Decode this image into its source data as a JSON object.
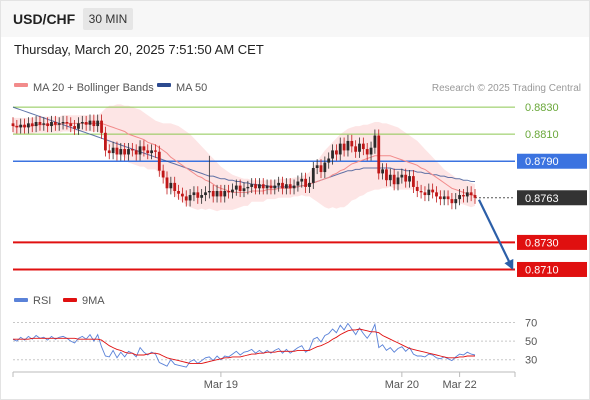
{
  "header": {
    "symbol": "USD/CHF",
    "timeframe": "30 MIN",
    "datetime": "Thursday, March 20, 2025 7:51:50 AM CET"
  },
  "legend": {
    "ma20_label": "MA 20 + Bollinger Bands",
    "ma50_label": "MA 50",
    "credit": "Research © 2025 Trading Central",
    "rsi_label": "RSI",
    "rsi_ma_label": "9MA"
  },
  "colors": {
    "ma20": "#f28b8b",
    "band_fill": "#fde0e0",
    "ma50": "#2c4a8f",
    "resistance": "#8cc850",
    "pivot": "#3b73e0",
    "support": "#e01010",
    "current": "#333333",
    "candle_up": "#2a2a2a",
    "candle_down": "#c01818",
    "forecast_arrow": "#2c5fa8",
    "rsi": "#5a82d8",
    "rsi_ma": "#e01010"
  },
  "chart_data": [
    {
      "type": "candlestick",
      "title": "USD/CHF",
      "yticks_shown": false,
      "ylim": [
        0.87,
        0.8836
      ],
      "xticks": [
        {
          "label": "Mar 19",
          "index": 54
        },
        {
          "label": "Mar 20",
          "index": 101
        },
        {
          "label": "Mar 22",
          "index": 116
        }
      ],
      "levels": [
        {
          "value": 0.883,
          "label": "0.8830",
          "kind": "resistance"
        },
        {
          "value": 0.881,
          "label": "0.8810",
          "kind": "resistance"
        },
        {
          "value": 0.879,
          "label": "0.8790",
          "kind": "pivot"
        },
        {
          "value": 0.8763,
          "label": "0.8763",
          "kind": "current"
        },
        {
          "value": 0.873,
          "label": "0.8730",
          "kind": "support"
        },
        {
          "value": 0.871,
          "label": "0.8710",
          "kind": "support"
        }
      ],
      "series": [
        {
          "name": "USD/CHF",
          "close": [
            0.8816,
            0.8815,
            0.8817,
            0.8815,
            0.8818,
            0.8816,
            0.8819,
            0.8817,
            0.8818,
            0.8816,
            0.8819,
            0.8817,
            0.8818,
            0.8819,
            0.8818,
            0.8816,
            0.8814,
            0.8818,
            0.8819,
            0.8817,
            0.882,
            0.8816,
            0.882,
            0.8811,
            0.8798,
            0.8796,
            0.88,
            0.8795,
            0.8799,
            0.8795,
            0.8799,
            0.8798,
            0.8795,
            0.8801,
            0.8798,
            0.8796,
            0.8798,
            0.8797,
            0.8783,
            0.8778,
            0.877,
            0.8774,
            0.8768,
            0.8766,
            0.8764,
            0.8761,
            0.8765,
            0.8767,
            0.8763,
            0.8765,
            0.8767,
            0.8768,
            0.8764,
            0.8768,
            0.8764,
            0.8768,
            0.8767,
            0.8769,
            0.8772,
            0.8768,
            0.877,
            0.8771,
            0.8773,
            0.877,
            0.8773,
            0.877,
            0.8772,
            0.877,
            0.8772,
            0.8774,
            0.877,
            0.8773,
            0.877,
            0.8772,
            0.8775,
            0.8777,
            0.8771,
            0.8774,
            0.8785,
            0.8787,
            0.8782,
            0.8789,
            0.8792,
            0.8798,
            0.8795,
            0.8803,
            0.8798,
            0.8805,
            0.8801,
            0.8797,
            0.8803,
            0.8799,
            0.8795,
            0.88,
            0.8809,
            0.8781,
            0.8784,
            0.8776,
            0.878,
            0.8773,
            0.8778,
            0.878,
            0.8775,
            0.8779,
            0.8771,
            0.8768,
            0.8767,
            0.8765,
            0.8769,
            0.8767,
            0.8764,
            0.8762,
            0.8764,
            0.8762,
            0.8759,
            0.8762,
            0.8765,
            0.8764,
            0.8767,
            0.8765,
            0.8763
          ]
        },
        {
          "name": "MA 20",
          "values": [
            0.8816,
            0.8816,
            0.8816,
            0.8816,
            0.8816,
            0.8816,
            0.8817,
            0.8817,
            0.8817,
            0.8817,
            0.8817,
            0.8817,
            0.8817,
            0.8818,
            0.8818,
            0.8818,
            0.8818,
            0.8818,
            0.8818,
            0.8818,
            0.8818,
            0.8818,
            0.8818,
            0.8818,
            0.8817,
            0.8816,
            0.8815,
            0.8814,
            0.8813,
            0.8812,
            0.881,
            0.8809,
            0.8808,
            0.8807,
            0.8806,
            0.8804,
            0.8803,
            0.8802,
            0.88,
            0.8798,
            0.8796,
            0.8793,
            0.8791,
            0.8789,
            0.8787,
            0.8785,
            0.8783,
            0.8781,
            0.8779,
            0.8778,
            0.8776,
            0.8775,
            0.8773,
            0.8771,
            0.877,
            0.8769,
            0.8768,
            0.8767,
            0.8767,
            0.8767,
            0.8767,
            0.8767,
            0.8768,
            0.8768,
            0.8768,
            0.8768,
            0.8769,
            0.8769,
            0.8769,
            0.877,
            0.877,
            0.877,
            0.877,
            0.8771,
            0.8771,
            0.8772,
            0.8772,
            0.8773,
            0.8774,
            0.8775,
            0.8776,
            0.8777,
            0.8778,
            0.878,
            0.8781,
            0.8783,
            0.8784,
            0.8786,
            0.8788,
            0.8789,
            0.879,
            0.8791,
            0.8792,
            0.8793,
            0.8794,
            0.8794,
            0.8794,
            0.8794,
            0.8794,
            0.8793,
            0.8792,
            0.8791,
            0.879,
            0.8789,
            0.8788,
            0.8787,
            0.8785,
            0.8784,
            0.8782,
            0.878,
            0.8778,
            0.8776,
            0.8774,
            0.8772,
            0.877,
            0.8769,
            0.8768,
            0.8767,
            0.8766,
            0.8765,
            0.8765
          ]
        },
        {
          "name": "Bollinger upper",
          "values": [
            0.8822,
            0.8822,
            0.8822,
            0.8822,
            0.8822,
            0.8822,
            0.8823,
            0.8823,
            0.8823,
            0.8823,
            0.8823,
            0.8823,
            0.8823,
            0.8824,
            0.8824,
            0.8824,
            0.8824,
            0.8824,
            0.8824,
            0.8824,
            0.8824,
            0.8824,
            0.8824,
            0.8826,
            0.8829,
            0.8831,
            0.8831,
            0.8832,
            0.8832,
            0.8831,
            0.8831,
            0.883,
            0.8829,
            0.8828,
            0.8826,
            0.8824,
            0.8822,
            0.882,
            0.8819,
            0.8818,
            0.8818,
            0.8818,
            0.8817,
            0.8816,
            0.8814,
            0.8812,
            0.881,
            0.8807,
            0.8804,
            0.8801,
            0.8798,
            0.8795,
            0.8792,
            0.8789,
            0.8786,
            0.8784,
            0.8782,
            0.878,
            0.8779,
            0.8778,
            0.8777,
            0.8777,
            0.8776,
            0.8776,
            0.8776,
            0.8776,
            0.8776,
            0.8776,
            0.8776,
            0.8777,
            0.8777,
            0.8777,
            0.8777,
            0.8778,
            0.8778,
            0.8779,
            0.878,
            0.8782,
            0.8786,
            0.879,
            0.8794,
            0.8798,
            0.8801,
            0.8804,
            0.8807,
            0.881,
            0.8812,
            0.8814,
            0.8815,
            0.8816,
            0.8816,
            0.8817,
            0.8817,
            0.8818,
            0.8819,
            0.8819,
            0.8818,
            0.8818,
            0.8817,
            0.8816,
            0.8815,
            0.8813,
            0.8811,
            0.8809,
            0.8807,
            0.8805,
            0.8802,
            0.8799,
            0.8796,
            0.8793,
            0.879,
            0.8787,
            0.8784,
            0.8782,
            0.878,
            0.8778,
            0.8777,
            0.8776,
            0.8775,
            0.8774,
            0.8773
          ]
        },
        {
          "name": "Bollinger lower",
          "values": [
            0.881,
            0.881,
            0.881,
            0.881,
            0.881,
            0.881,
            0.8811,
            0.8811,
            0.8811,
            0.8811,
            0.8811,
            0.8811,
            0.8811,
            0.8812,
            0.8812,
            0.8812,
            0.8812,
            0.8812,
            0.8812,
            0.8812,
            0.8812,
            0.8812,
            0.8812,
            0.881,
            0.8805,
            0.8801,
            0.8799,
            0.8796,
            0.8794,
            0.8793,
            0.8789,
            0.8788,
            0.8787,
            0.8786,
            0.8786,
            0.8784,
            0.8784,
            0.8784,
            0.8781,
            0.8778,
            0.8774,
            0.8768,
            0.8765,
            0.8762,
            0.876,
            0.8758,
            0.8756,
            0.8755,
            0.8754,
            0.8755,
            0.8754,
            0.8755,
            0.8754,
            0.8753,
            0.8754,
            0.8754,
            0.8754,
            0.8754,
            0.8755,
            0.8756,
            0.8757,
            0.8757,
            0.876,
            0.876,
            0.876,
            0.876,
            0.8762,
            0.8762,
            0.8762,
            0.8763,
            0.8763,
            0.8763,
            0.8763,
            0.8764,
            0.8764,
            0.8765,
            0.8764,
            0.8764,
            0.8762,
            0.876,
            0.8758,
            0.8756,
            0.8755,
            0.8756,
            0.8755,
            0.8756,
            0.8756,
            0.8758,
            0.8761,
            0.8762,
            0.8764,
            0.8765,
            0.8767,
            0.8768,
            0.8769,
            0.8769,
            0.877,
            0.877,
            0.8771,
            0.877,
            0.8769,
            0.8769,
            0.8769,
            0.8769,
            0.8769,
            0.8769,
            0.8768,
            0.8769,
            0.8768,
            0.8767,
            0.8766,
            0.8765,
            0.8764,
            0.8762,
            0.876,
            0.876,
            0.8759,
            0.8758,
            0.8757,
            0.8756,
            0.8757
          ]
        },
        {
          "name": "MA 50",
          "values": [
            0.883,
            0.8829,
            0.8828,
            0.8827,
            0.8826,
            0.8825,
            0.8824,
            0.8823,
            0.8822,
            0.8821,
            0.882,
            0.8819,
            0.8818,
            0.8817,
            0.8816,
            0.8815,
            0.8814,
            0.8813,
            0.8812,
            0.8811,
            0.881,
            0.8809,
            0.8808,
            0.8807,
            0.8806,
            0.8805,
            0.8804,
            0.8803,
            0.8802,
            0.8801,
            0.88,
            0.8799,
            0.8798,
            0.8797,
            0.8796,
            0.8795,
            0.8794,
            0.8793,
            0.8792,
            0.8791,
            0.879,
            0.8789,
            0.8788,
            0.8787,
            0.8786,
            0.8785,
            0.8784,
            0.8783,
            0.8782,
            0.8781,
            0.878,
            0.8779,
            0.8779,
            0.8778,
            0.8777,
            0.8777,
            0.8776,
            0.8776,
            0.8775,
            0.8775,
            0.8774,
            0.8774,
            0.8773,
            0.8773,
            0.8772,
            0.8772,
            0.8772,
            0.8771,
            0.8771,
            0.8771,
            0.8771,
            0.8771,
            0.8771,
            0.8771,
            0.8771,
            0.8772,
            0.8772,
            0.8773,
            0.8774,
            0.8775,
            0.8776,
            0.8777,
            0.8778,
            0.8779,
            0.878,
            0.8781,
            0.8782,
            0.8783,
            0.8783,
            0.8784,
            0.8784,
            0.8785,
            0.8785,
            0.8785,
            0.8785,
            0.8785,
            0.8785,
            0.8785,
            0.8785,
            0.8784,
            0.8784,
            0.8784,
            0.8783,
            0.8783,
            0.8783,
            0.8782,
            0.8782,
            0.8781,
            0.8781,
            0.878,
            0.878,
            0.8779,
            0.8779,
            0.8778,
            0.8778,
            0.8777,
            0.8777,
            0.8776,
            0.8776,
            0.8775,
            0.8775
          ]
        }
      ],
      "forecast": {
        "from": 0.8763,
        "to": 0.871
      }
    },
    {
      "type": "line",
      "title": "",
      "ylim": [
        20,
        78
      ],
      "yticks": [
        30,
        50,
        70
      ],
      "series": [
        {
          "name": "RSI",
          "values": [
            52,
            50,
            54,
            51,
            55,
            52,
            56,
            53,
            54,
            51,
            55,
            52,
            54,
            55,
            53,
            50,
            48,
            53,
            55,
            52,
            57,
            50,
            57,
            44,
            34,
            33,
            40,
            32,
            38,
            33,
            39,
            37,
            33,
            43,
            38,
            35,
            38,
            36,
            27,
            25,
            23,
            30,
            25,
            24,
            23,
            22,
            28,
            30,
            26,
            29,
            32,
            33,
            29,
            34,
            30,
            34,
            33,
            36,
            39,
            35,
            38,
            39,
            41,
            37,
            40,
            37,
            40,
            37,
            40,
            42,
            37,
            41,
            37,
            40,
            43,
            45,
            38,
            41,
            52,
            54,
            49,
            56,
            58,
            63,
            59,
            67,
            62,
            69,
            63,
            57,
            64,
            58,
            53,
            59,
            68,
            43,
            46,
            40,
            43,
            38,
            42,
            44,
            39,
            43,
            36,
            34,
            34,
            33,
            36,
            35,
            32,
            31,
            33,
            31,
            29,
            33,
            36,
            35,
            38,
            36,
            35
          ]
        },
        {
          "name": "9MA",
          "values": [
            52,
            52,
            52,
            52,
            52,
            53,
            53,
            53,
            53,
            53,
            53,
            53,
            53,
            53,
            53,
            53,
            53,
            52,
            52,
            52,
            52,
            52,
            52,
            51,
            48,
            45,
            43,
            41,
            40,
            38,
            37,
            37,
            35,
            35,
            35,
            36,
            37,
            37,
            36,
            34,
            32,
            31,
            30,
            29,
            28,
            27,
            26,
            26,
            26,
            26,
            27,
            28,
            29,
            30,
            31,
            32,
            32,
            33,
            33,
            33,
            34,
            35,
            36,
            36,
            37,
            37,
            38,
            38,
            38,
            39,
            39,
            39,
            39,
            39,
            40,
            40,
            40,
            40,
            42,
            44,
            45,
            47,
            49,
            52,
            54,
            57,
            59,
            61,
            62,
            62,
            63,
            62,
            61,
            60,
            60,
            59,
            56,
            54,
            52,
            50,
            48,
            46,
            44,
            42,
            41,
            40,
            39,
            38,
            37,
            36,
            35,
            34,
            33,
            32,
            32,
            32,
            33,
            33,
            34,
            34,
            34
          ]
        }
      ]
    }
  ]
}
